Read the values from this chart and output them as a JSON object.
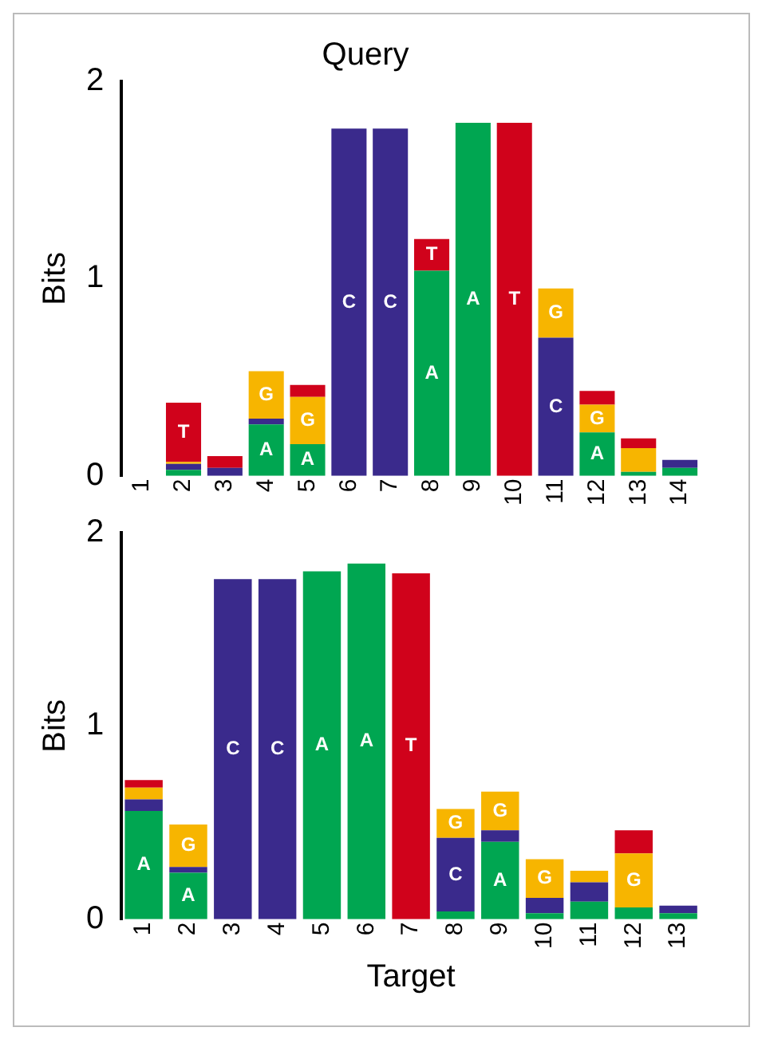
{
  "chart_data": [
    {
      "type": "bar",
      "title": "Query",
      "ylabel": "Bits",
      "stacked": true,
      "ylim": [
        0,
        2
      ],
      "yticks": [
        0,
        1,
        2
      ],
      "categories": [
        "1",
        "2",
        "3",
        "4",
        "5",
        "6",
        "7",
        "8",
        "9",
        "10",
        "11",
        "12",
        "13",
        "14"
      ],
      "series": [
        {
          "name": "A",
          "color": "#00a651",
          "values": [
            0,
            0.03,
            0,
            0.26,
            0.16,
            0,
            0,
            1.04,
            1.79,
            0,
            0,
            0.22,
            0.02,
            0.04
          ]
        },
        {
          "name": "C",
          "color": "#3a2a8c",
          "values": [
            0,
            0.03,
            0.04,
            0.03,
            0,
            1.76,
            1.76,
            0,
            0,
            0,
            0.7,
            0,
            0,
            0.04
          ]
        },
        {
          "name": "G",
          "color": "#f7b500",
          "values": [
            0,
            0.01,
            0,
            0.24,
            0.24,
            0,
            0,
            0,
            0,
            0,
            0.25,
            0.14,
            0.12,
            0
          ]
        },
        {
          "name": "T",
          "color": "#d0021b",
          "values": [
            0,
            0.3,
            0.06,
            0,
            0.06,
            0,
            0,
            0.16,
            0,
            1.79,
            0,
            0.07,
            0.05,
            0
          ]
        }
      ]
    },
    {
      "type": "bar",
      "xlabel": "Target",
      "ylabel": "Bits",
      "stacked": true,
      "ylim": [
        0,
        2
      ],
      "yticks": [
        0,
        1,
        2
      ],
      "categories": [
        "1",
        "2",
        "3",
        "4",
        "5",
        "6",
        "7",
        "8",
        "9",
        "10",
        "11",
        "12",
        "13"
      ],
      "series": [
        {
          "name": "A",
          "color": "#00a651",
          "values": [
            0.56,
            0.24,
            0,
            0,
            1.8,
            1.84,
            0,
            0.04,
            0.4,
            0.03,
            0.09,
            0.06,
            0.03
          ]
        },
        {
          "name": "C",
          "color": "#3a2a8c",
          "values": [
            0.06,
            0.03,
            1.76,
            1.76,
            0,
            0,
            0,
            0.38,
            0.06,
            0.08,
            0.1,
            0,
            0.04
          ]
        },
        {
          "name": "G",
          "color": "#f7b500",
          "values": [
            0.06,
            0.22,
            0,
            0,
            0,
            0,
            0,
            0.15,
            0.2,
            0.2,
            0.06,
            0.28,
            0
          ]
        },
        {
          "name": "T",
          "color": "#d0021b",
          "values": [
            0.04,
            0,
            0,
            0,
            0,
            0,
            1.79,
            0,
            0,
            0,
            0,
            0.12,
            0
          ]
        }
      ]
    }
  ]
}
